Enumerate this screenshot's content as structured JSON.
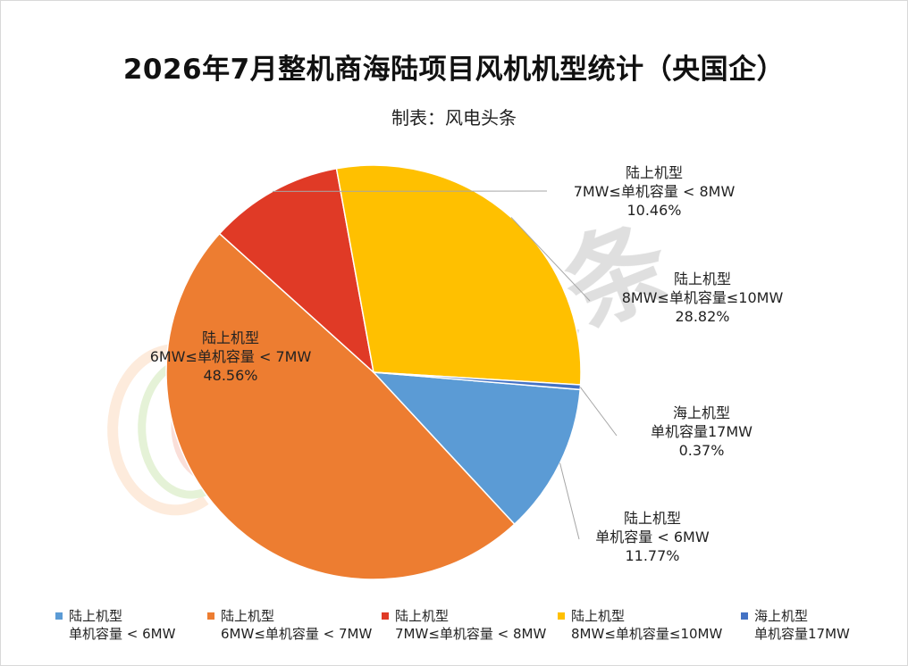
{
  "chart_data": {
    "type": "pie",
    "title": "2026年7月整机商海陆项目风机机型统计（央国企）",
    "subtitle": "制表：风电头条",
    "slices": [
      {
        "line1": "陆上机型",
        "line2": "单机容量 < 6MW",
        "percent_label": "11.77%",
        "value": 11.77,
        "color": "#5B9BD5"
      },
      {
        "line1": "陆上机型",
        "line2": "6MW≤单机容量 < 7MW",
        "percent_label": "48.56%",
        "value": 48.56,
        "color": "#ED7D31"
      },
      {
        "line1": "陆上机型",
        "line2": "7MW≤单机容量 < 8MW",
        "percent_label": "10.46%",
        "value": 10.46,
        "color": "#E03A26"
      },
      {
        "line1": "陆上机型",
        "line2": "8MW≤单机容量≤10MW",
        "percent_label": "28.82%",
        "value": 28.82,
        "color": "#FFC000"
      },
      {
        "line1": "海上机型",
        "line2": "单机容量17MW",
        "percent_label": "0.37%",
        "value": 0.37,
        "color": "#4472C4"
      }
    ],
    "legend_placement": "bottom"
  },
  "watermark": {
    "text": "风电头条"
  }
}
